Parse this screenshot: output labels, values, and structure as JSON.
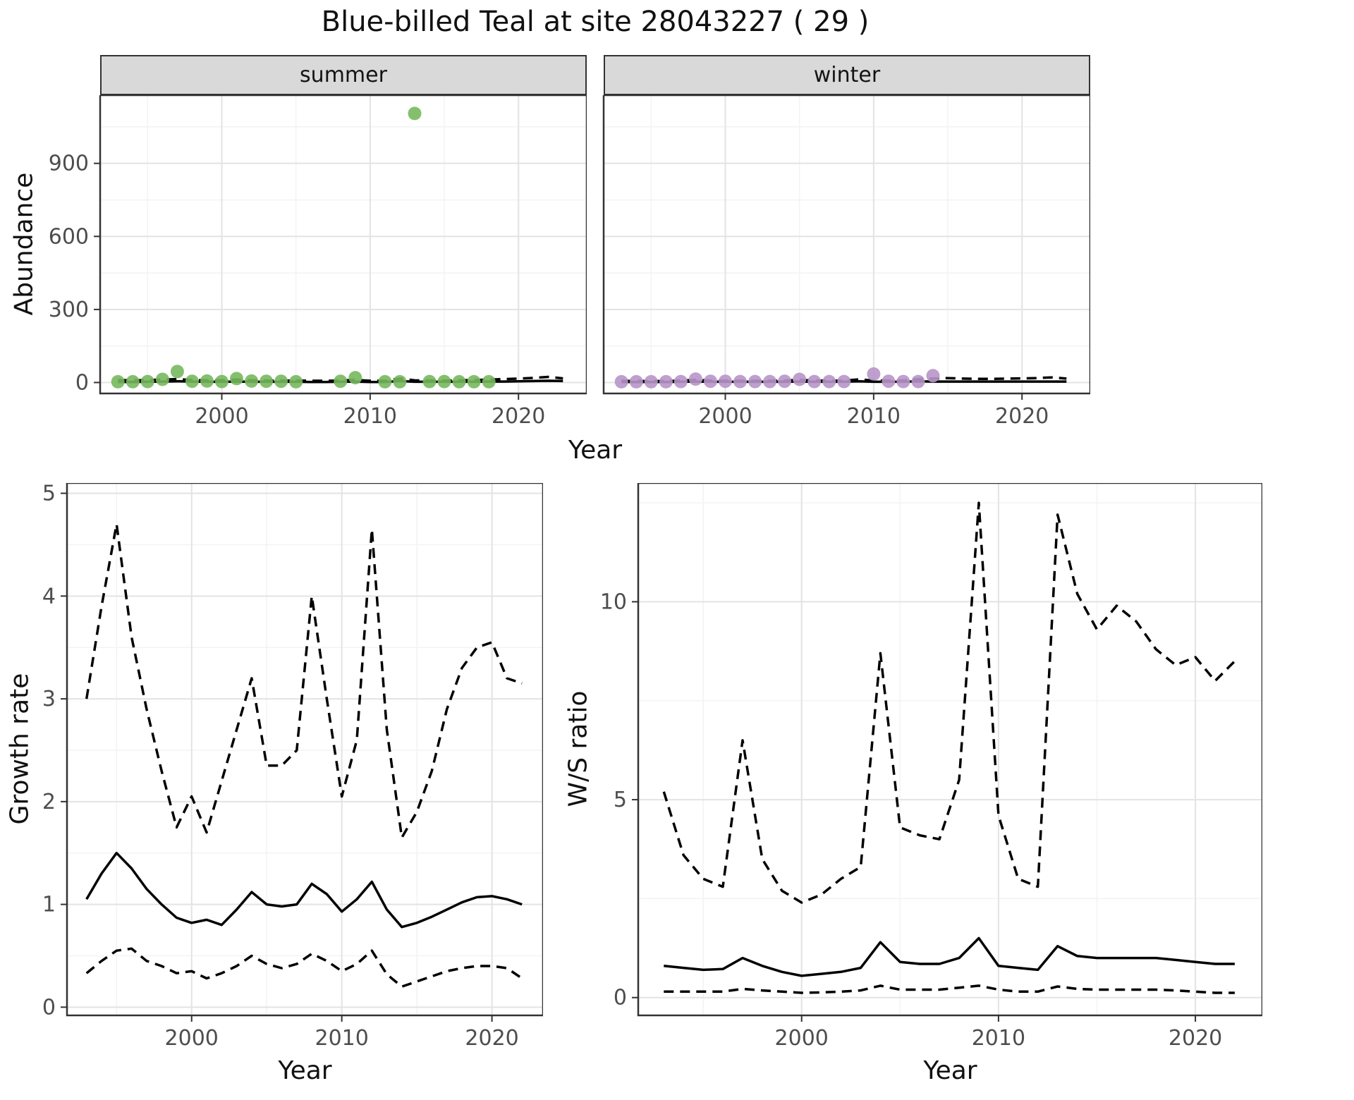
{
  "title": "Blue-billed Teal at site 28043227 ( 29 )",
  "axis_labels": {
    "year": "Year",
    "abundance": "Abundance",
    "growth_rate": "Growth rate",
    "ws_ratio": "W/S ratio"
  },
  "facets": {
    "summer": "summer",
    "winter": "winter"
  },
  "colors": {
    "summer_point": "#77b85e",
    "winter_point": "#b795c8",
    "line": "#000000",
    "grid_major": "#e3e3e3",
    "grid_minor": "#f3f3f3",
    "panel_border": "#333333",
    "axis_text": "#4d4d4d",
    "strip_bg": "#d9d9d9"
  },
  "chart_data": [
    {
      "id": "abundance-summer",
      "type": "scatter",
      "facet": "summer",
      "xlabel": "Year",
      "ylabel": "Abundance",
      "xlim": [
        1991.8,
        2024.6
      ],
      "ylim": [
        -45,
        1180
      ],
      "xticks": [
        2000,
        2010,
        2020
      ],
      "yticks": [
        0,
        300,
        600,
        900
      ],
      "show_ytick_labels": true,
      "points": {
        "color": "#77b85e",
        "x": [
          1993,
          1994,
          1995,
          1996,
          1997,
          1998,
          1999,
          2000,
          2001,
          2002,
          2003,
          2004,
          2005,
          2008,
          2009,
          2011,
          2012,
          2013,
          2014,
          2015,
          2016,
          2017,
          2018
        ],
        "y": [
          3,
          3,
          4,
          13,
          45,
          5,
          6,
          4,
          16,
          6,
          5,
          5,
          3,
          5,
          20,
          3,
          3,
          1105,
          4,
          4,
          3,
          3,
          3
        ]
      },
      "lines": [
        {
          "name": "fitted-median",
          "style": "solid",
          "x": [
            1993,
            1994,
            1995,
            1996,
            1997,
            1998,
            1999,
            2000,
            2001,
            2002,
            2003,
            2004,
            2005,
            2006,
            2007,
            2008,
            2009,
            2010,
            2011,
            2012,
            2013,
            2014,
            2015,
            2016,
            2017,
            2018,
            2019,
            2020,
            2021,
            2022,
            2023
          ],
          "y": [
            2,
            2,
            3,
            4,
            5,
            4,
            3,
            3,
            4,
            3,
            3,
            3,
            3,
            2,
            2,
            3,
            4,
            2,
            2,
            6,
            3,
            3,
            3,
            3,
            3,
            4,
            4,
            5,
            6,
            7,
            6
          ]
        },
        {
          "name": "upper-interval",
          "style": "dashed",
          "x": [
            1993,
            1994,
            1995,
            1996,
            1997,
            1998,
            1999,
            2000,
            2001,
            2002,
            2003,
            2004,
            2005,
            2006,
            2007,
            2008,
            2009,
            2010,
            2011,
            2012,
            2013,
            2014,
            2015,
            2016,
            2017,
            2018,
            2019,
            2020,
            2021,
            2022,
            2023
          ],
          "y": [
            10,
            9,
            10,
            12,
            14,
            10,
            9,
            9,
            12,
            9,
            8,
            8,
            8,
            7,
            7,
            8,
            11,
            7,
            7,
            16,
            9,
            8,
            8,
            9,
            10,
            12,
            14,
            16,
            19,
            23,
            17
          ]
        }
      ]
    },
    {
      "id": "abundance-winter",
      "type": "scatter",
      "facet": "winter",
      "xlabel": "Year",
      "ylabel": "Abundance",
      "xlim": [
        1991.8,
        2024.6
      ],
      "ylim": [
        -45,
        1180
      ],
      "xticks": [
        2000,
        2010,
        2020
      ],
      "yticks": [
        0,
        300,
        600,
        900
      ],
      "show_ytick_labels": false,
      "points": {
        "color": "#b795c8",
        "x": [
          1993,
          1994,
          1995,
          1996,
          1997,
          1998,
          1999,
          2000,
          2001,
          2002,
          2003,
          2004,
          2005,
          2006,
          2007,
          2008,
          2010,
          2011,
          2012,
          2013,
          2014
        ],
        "y": [
          3,
          3,
          3,
          3,
          4,
          14,
          5,
          5,
          4,
          4,
          4,
          5,
          13,
          4,
          4,
          4,
          35,
          5,
          4,
          4,
          28
        ]
      },
      "lines": [
        {
          "name": "fitted-median",
          "style": "solid",
          "x": [
            1993,
            1994,
            1995,
            1996,
            1997,
            1998,
            1999,
            2000,
            2001,
            2002,
            2003,
            2004,
            2005,
            2006,
            2007,
            2008,
            2009,
            2010,
            2011,
            2012,
            2013,
            2014,
            2015,
            2016,
            2017,
            2018,
            2019,
            2020,
            2021,
            2022,
            2023
          ],
          "y": [
            2,
            2,
            2,
            2,
            3,
            4,
            3,
            3,
            3,
            3,
            3,
            3,
            4,
            3,
            3,
            3,
            5,
            3,
            3,
            3,
            5,
            4,
            4,
            4,
            4,
            4,
            4,
            4,
            4,
            4,
            4
          ]
        },
        {
          "name": "upper-interval",
          "style": "dashed",
          "x": [
            1993,
            1994,
            1995,
            1996,
            1997,
            1998,
            1999,
            2000,
            2001,
            2002,
            2003,
            2004,
            2005,
            2006,
            2007,
            2008,
            2009,
            2010,
            2011,
            2012,
            2013,
            2014,
            2015,
            2016,
            2017,
            2018,
            2019,
            2020,
            2021,
            2022,
            2023
          ],
          "y": [
            7,
            6,
            6,
            6,
            8,
            11,
            8,
            7,
            7,
            7,
            7,
            8,
            11,
            8,
            7,
            8,
            13,
            8,
            8,
            8,
            14,
            16,
            18,
            16,
            15,
            15,
            16,
            17,
            18,
            21,
            16
          ]
        }
      ]
    },
    {
      "id": "growth-rate",
      "type": "line",
      "xlabel": "Year",
      "ylabel": "Growth rate",
      "xlim": [
        1991.7,
        2023.4
      ],
      "ylim": [
        -0.08,
        5.1
      ],
      "xticks": [
        2000,
        2010,
        2020
      ],
      "yticks": [
        0,
        1,
        2,
        3,
        4,
        5
      ],
      "show_ytick_labels": true,
      "lines": [
        {
          "name": "median",
          "style": "solid",
          "x": [
            1993,
            1994,
            1995,
            1996,
            1997,
            1998,
            1999,
            2000,
            2001,
            2002,
            2003,
            2004,
            2005,
            2006,
            2007,
            2008,
            2009,
            2010,
            2011,
            2012,
            2013,
            2014,
            2015,
            2016,
            2017,
            2018,
            2019,
            2020,
            2021,
            2022
          ],
          "y": [
            1.05,
            1.3,
            1.5,
            1.35,
            1.15,
            1.0,
            0.87,
            0.82,
            0.85,
            0.8,
            0.95,
            1.12,
            1.0,
            0.98,
            1.0,
            1.2,
            1.1,
            0.93,
            1.05,
            1.22,
            0.95,
            0.78,
            0.82,
            0.88,
            0.95,
            1.02,
            1.07,
            1.08,
            1.05,
            1.0
          ]
        },
        {
          "name": "upper-interval",
          "style": "dashed",
          "x": [
            1993,
            1994,
            1995,
            1996,
            1997,
            1998,
            1999,
            2000,
            2001,
            2002,
            2003,
            2004,
            2005,
            2006,
            2007,
            2008,
            2009,
            2010,
            2011,
            2012,
            2013,
            2014,
            2015,
            2016,
            2017,
            2018,
            2019,
            2020,
            2021,
            2022
          ],
          "y": [
            3.0,
            3.9,
            4.7,
            3.6,
            2.9,
            2.3,
            1.75,
            2.05,
            1.7,
            2.2,
            2.7,
            3.2,
            2.35,
            2.35,
            2.5,
            4.0,
            3.0,
            2.05,
            2.6,
            4.65,
            2.7,
            1.65,
            1.9,
            2.3,
            2.9,
            3.3,
            3.5,
            3.55,
            3.2,
            3.15
          ]
        },
        {
          "name": "lower-interval",
          "style": "dashed",
          "x": [
            1993,
            1994,
            1995,
            1996,
            1997,
            1998,
            1999,
            2000,
            2001,
            2002,
            2003,
            2004,
            2005,
            2006,
            2007,
            2008,
            2009,
            2010,
            2011,
            2012,
            2013,
            2014,
            2015,
            2016,
            2017,
            2018,
            2019,
            2020,
            2021,
            2022
          ],
          "y": [
            0.33,
            0.45,
            0.55,
            0.57,
            0.45,
            0.4,
            0.33,
            0.35,
            0.28,
            0.33,
            0.4,
            0.5,
            0.42,
            0.38,
            0.42,
            0.52,
            0.45,
            0.35,
            0.42,
            0.55,
            0.32,
            0.2,
            0.25,
            0.3,
            0.35,
            0.38,
            0.4,
            0.4,
            0.38,
            0.28
          ]
        }
      ]
    },
    {
      "id": "ws-ratio",
      "type": "line",
      "xlabel": "Year",
      "ylabel": "W/S ratio",
      "xlim": [
        1991.7,
        2023.4
      ],
      "ylim": [
        -0.45,
        13.0
      ],
      "xticks": [
        2000,
        2010,
        2020
      ],
      "yticks": [
        0,
        5,
        10
      ],
      "show_ytick_labels": true,
      "lines": [
        {
          "name": "median",
          "style": "solid",
          "x": [
            1993,
            1994,
            1995,
            1996,
            1997,
            1998,
            1999,
            2000,
            2001,
            2002,
            2003,
            2004,
            2005,
            2006,
            2007,
            2008,
            2009,
            2010,
            2011,
            2012,
            2013,
            2014,
            2015,
            2016,
            2017,
            2018,
            2019,
            2020,
            2021,
            2022
          ],
          "y": [
            0.8,
            0.75,
            0.7,
            0.72,
            1.0,
            0.8,
            0.65,
            0.55,
            0.6,
            0.65,
            0.75,
            1.4,
            0.9,
            0.85,
            0.85,
            1.0,
            1.5,
            0.8,
            0.75,
            0.7,
            1.3,
            1.05,
            1.0,
            1.0,
            1.0,
            1.0,
            0.95,
            0.9,
            0.85,
            0.85
          ]
        },
        {
          "name": "upper-interval",
          "style": "dashed",
          "x": [
            1993,
            1994,
            1995,
            1996,
            1997,
            1998,
            1999,
            2000,
            2001,
            2002,
            2003,
            2004,
            2005,
            2006,
            2007,
            2008,
            2009,
            2010,
            2011,
            2012,
            2013,
            2014,
            2015,
            2016,
            2017,
            2018,
            2019,
            2020,
            2021,
            2022
          ],
          "y": [
            5.2,
            3.6,
            3.0,
            2.8,
            6.5,
            3.5,
            2.7,
            2.4,
            2.6,
            3.0,
            3.3,
            8.7,
            4.3,
            4.1,
            4.0,
            5.5,
            12.5,
            4.6,
            3.0,
            2.8,
            12.2,
            10.2,
            9.3,
            9.9,
            9.5,
            8.8,
            8.4,
            8.6,
            8.0,
            8.5
          ]
        },
        {
          "name": "lower-interval",
          "style": "dashed",
          "x": [
            1993,
            1994,
            1995,
            1996,
            1997,
            1998,
            1999,
            2000,
            2001,
            2002,
            2003,
            2004,
            2005,
            2006,
            2007,
            2008,
            2009,
            2010,
            2011,
            2012,
            2013,
            2014,
            2015,
            2016,
            2017,
            2018,
            2019,
            2020,
            2021,
            2022
          ],
          "y": [
            0.15,
            0.15,
            0.15,
            0.15,
            0.22,
            0.18,
            0.15,
            0.12,
            0.13,
            0.15,
            0.18,
            0.3,
            0.2,
            0.2,
            0.2,
            0.25,
            0.3,
            0.2,
            0.15,
            0.15,
            0.28,
            0.22,
            0.2,
            0.2,
            0.2,
            0.2,
            0.18,
            0.15,
            0.12,
            0.12
          ]
        }
      ]
    }
  ]
}
